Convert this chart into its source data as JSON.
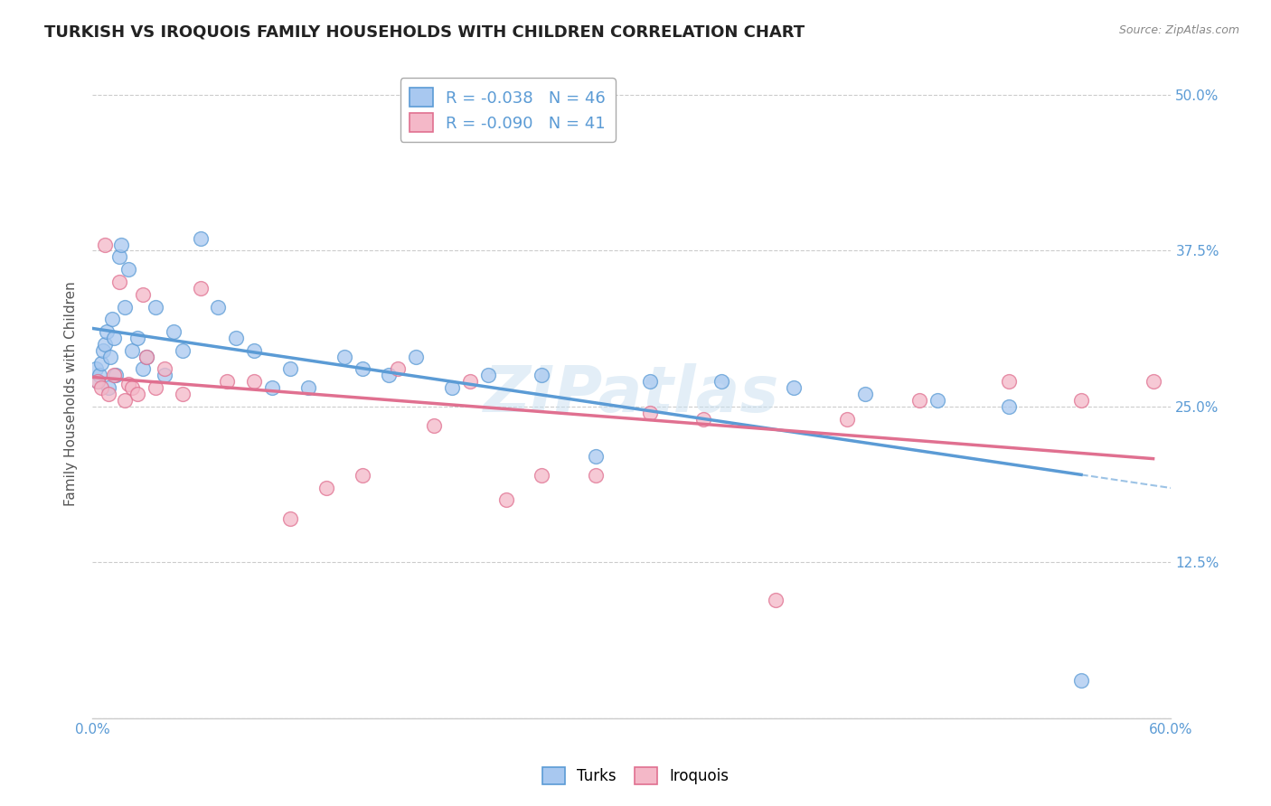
{
  "title": "TURKISH VS IROQUOIS FAMILY HOUSEHOLDS WITH CHILDREN CORRELATION CHART",
  "source": "Source: ZipAtlas.com",
  "ylabel": "Family Households with Children",
  "x_min": 0.0,
  "x_max": 0.6,
  "y_min": 0.0,
  "y_max": 0.52,
  "x_ticks": [
    0.0,
    0.1,
    0.2,
    0.3,
    0.4,
    0.5,
    0.6
  ],
  "y_ticks": [
    0.0,
    0.125,
    0.25,
    0.375,
    0.5
  ],
  "y_tick_labels_right": [
    "",
    "12.5%",
    "25.0%",
    "37.5%",
    "50.0%"
  ],
  "x_tick_labels": [
    "0.0%",
    "",
    "",
    "",
    "",
    "",
    "60.0%"
  ],
  "color_turks_fill": "#a8c8f0",
  "color_turks_edge": "#5b9bd5",
  "color_iroquois_fill": "#f4b8c8",
  "color_iroquois_edge": "#e07090",
  "color_turks_line": "#5b9bd5",
  "color_iroquois_line": "#e07090",
  "color_axis_ticks": "#5b9bd5",
  "color_legend_r": "#5b9bd5",
  "color_legend_n": "#5b9bd5",
  "watermark_text": "ZIPatlas",
  "turks_x": [
    0.002,
    0.003,
    0.004,
    0.005,
    0.006,
    0.007,
    0.008,
    0.009,
    0.01,
    0.011,
    0.012,
    0.013,
    0.015,
    0.016,
    0.018,
    0.02,
    0.022,
    0.025,
    0.028,
    0.03,
    0.035,
    0.04,
    0.045,
    0.05,
    0.06,
    0.07,
    0.08,
    0.09,
    0.1,
    0.11,
    0.12,
    0.14,
    0.15,
    0.165,
    0.18,
    0.2,
    0.22,
    0.25,
    0.28,
    0.31,
    0.35,
    0.39,
    0.43,
    0.47,
    0.51,
    0.55
  ],
  "turks_y": [
    0.28,
    0.27,
    0.275,
    0.285,
    0.295,
    0.3,
    0.31,
    0.265,
    0.29,
    0.32,
    0.305,
    0.275,
    0.37,
    0.38,
    0.33,
    0.36,
    0.295,
    0.305,
    0.28,
    0.29,
    0.33,
    0.275,
    0.31,
    0.295,
    0.385,
    0.33,
    0.305,
    0.295,
    0.265,
    0.28,
    0.265,
    0.29,
    0.28,
    0.275,
    0.29,
    0.265,
    0.275,
    0.275,
    0.21,
    0.27,
    0.27,
    0.265,
    0.26,
    0.255,
    0.25,
    0.03
  ],
  "iroquois_x": [
    0.003,
    0.005,
    0.007,
    0.009,
    0.012,
    0.015,
    0.018,
    0.02,
    0.022,
    0.025,
    0.028,
    0.03,
    0.035,
    0.04,
    0.05,
    0.06,
    0.075,
    0.09,
    0.11,
    0.13,
    0.15,
    0.17,
    0.19,
    0.21,
    0.23,
    0.25,
    0.28,
    0.31,
    0.34,
    0.38,
    0.42,
    0.46,
    0.51,
    0.55,
    0.59
  ],
  "iroquois_y": [
    0.27,
    0.265,
    0.38,
    0.26,
    0.275,
    0.35,
    0.255,
    0.268,
    0.265,
    0.26,
    0.34,
    0.29,
    0.265,
    0.28,
    0.26,
    0.345,
    0.27,
    0.27,
    0.16,
    0.185,
    0.195,
    0.28,
    0.235,
    0.27,
    0.175,
    0.195,
    0.195,
    0.245,
    0.24,
    0.095,
    0.24,
    0.255,
    0.27,
    0.255,
    0.27
  ],
  "bg_color": "#ffffff",
  "grid_color": "#cccccc",
  "title_fontsize": 13,
  "axis_label_fontsize": 11,
  "tick_fontsize": 11,
  "legend_fontsize": 13,
  "scatter_size": 130,
  "scatter_alpha": 0.75
}
